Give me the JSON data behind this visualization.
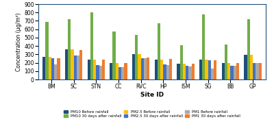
{
  "sites": [
    "BM",
    "SC",
    "STN",
    "CC",
    "RVC",
    "HP",
    "ISM",
    "SG",
    "BB",
    "GP"
  ],
  "series": {
    "PM10 Before rainfall": [
      270,
      360,
      235,
      200,
      300,
      240,
      190,
      235,
      200,
      295
    ],
    "PM10 30 days after rainfall": [
      690,
      720,
      800,
      570,
      530,
      670,
      410,
      775,
      415,
      720
    ],
    "PM2.5 Before rainfall": [
      270,
      360,
      235,
      200,
      300,
      240,
      190,
      235,
      200,
      295
    ],
    "PM2.5 30 days after rainfall": [
      250,
      285,
      175,
      145,
      255,
      180,
      160,
      230,
      165,
      200
    ],
    "PM1 Before rainfall": [
      180,
      290,
      165,
      145,
      255,
      175,
      155,
      130,
      165,
      200
    ],
    "PM1 30 days after rainfall": [
      250,
      350,
      240,
      200,
      265,
      245,
      185,
      230,
      200,
      200
    ]
  },
  "series_order": [
    "PM10 Before rainfall",
    "PM10 30 days after rainfall",
    "PM2.5 Before rainfall",
    "PM2.5 30 days after rainfall",
    "PM1 Before rainfall",
    "PM1 30 days after rainfall"
  ],
  "colors": {
    "PM10 Before rainfall": "#1f4e79",
    "PM10 30 days after rainfall": "#70ad47",
    "PM2.5 Before rainfall": "#ffc000",
    "PM2.5 30 days after rainfall": "#4472c4",
    "PM1 Before rainfall": "#a9a9a9",
    "PM1 30 days after rainfall": "#ed7d31"
  },
  "ylabel": "Concentration (μg/m³)",
  "xlabel": "Site ID",
  "ylim": [
    0,
    900
  ],
  "yticks": [
    0,
    100,
    200,
    300,
    400,
    500,
    600,
    700,
    800,
    900
  ],
  "legend_ncol": 3,
  "figsize": [
    4.0,
    2.0
  ],
  "dpi": 100,
  "bar_width": 0.13
}
